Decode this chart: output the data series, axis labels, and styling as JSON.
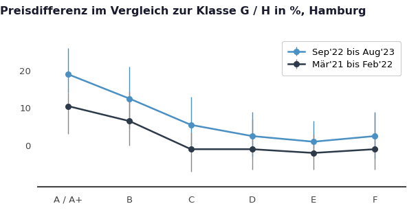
{
  "title": "Preisdifferenz im Vergleich zur Klasse G / H in %, Hamburg",
  "categories": [
    "A / A+",
    "B",
    "C",
    "D",
    "E",
    "F"
  ],
  "series1": {
    "label": "Sep'22 bis Aug'23",
    "color": "#4a90c4",
    "values": [
      19.0,
      12.5,
      5.5,
      2.5,
      1.0,
      2.5
    ],
    "yerr_upper": [
      7.0,
      8.5,
      7.5,
      6.5,
      5.5,
      6.5
    ],
    "yerr_lower": [
      5.0,
      8.0,
      5.5,
      5.5,
      4.0,
      6.0
    ]
  },
  "series2": {
    "label": "Mär'21 bis Feb'22",
    "color": "#2d3a4a",
    "ecolor": "#888888",
    "values": [
      10.5,
      6.5,
      -1.0,
      -1.0,
      -2.0,
      -1.0
    ],
    "yerr_upper": [
      3.5,
      8.0,
      4.5,
      8.0,
      5.0,
      9.5
    ],
    "yerr_lower": [
      7.5,
      6.5,
      6.0,
      5.5,
      4.5,
      5.5
    ]
  },
  "ylim": [
    -11,
    29
  ],
  "yticks": [
    0,
    10,
    20
  ],
  "xlim": [
    -0.5,
    5.5
  ],
  "background_color": "#ffffff",
  "title_fontsize": 11.5,
  "legend_fontsize": 9.5,
  "tick_fontsize": 9.5
}
